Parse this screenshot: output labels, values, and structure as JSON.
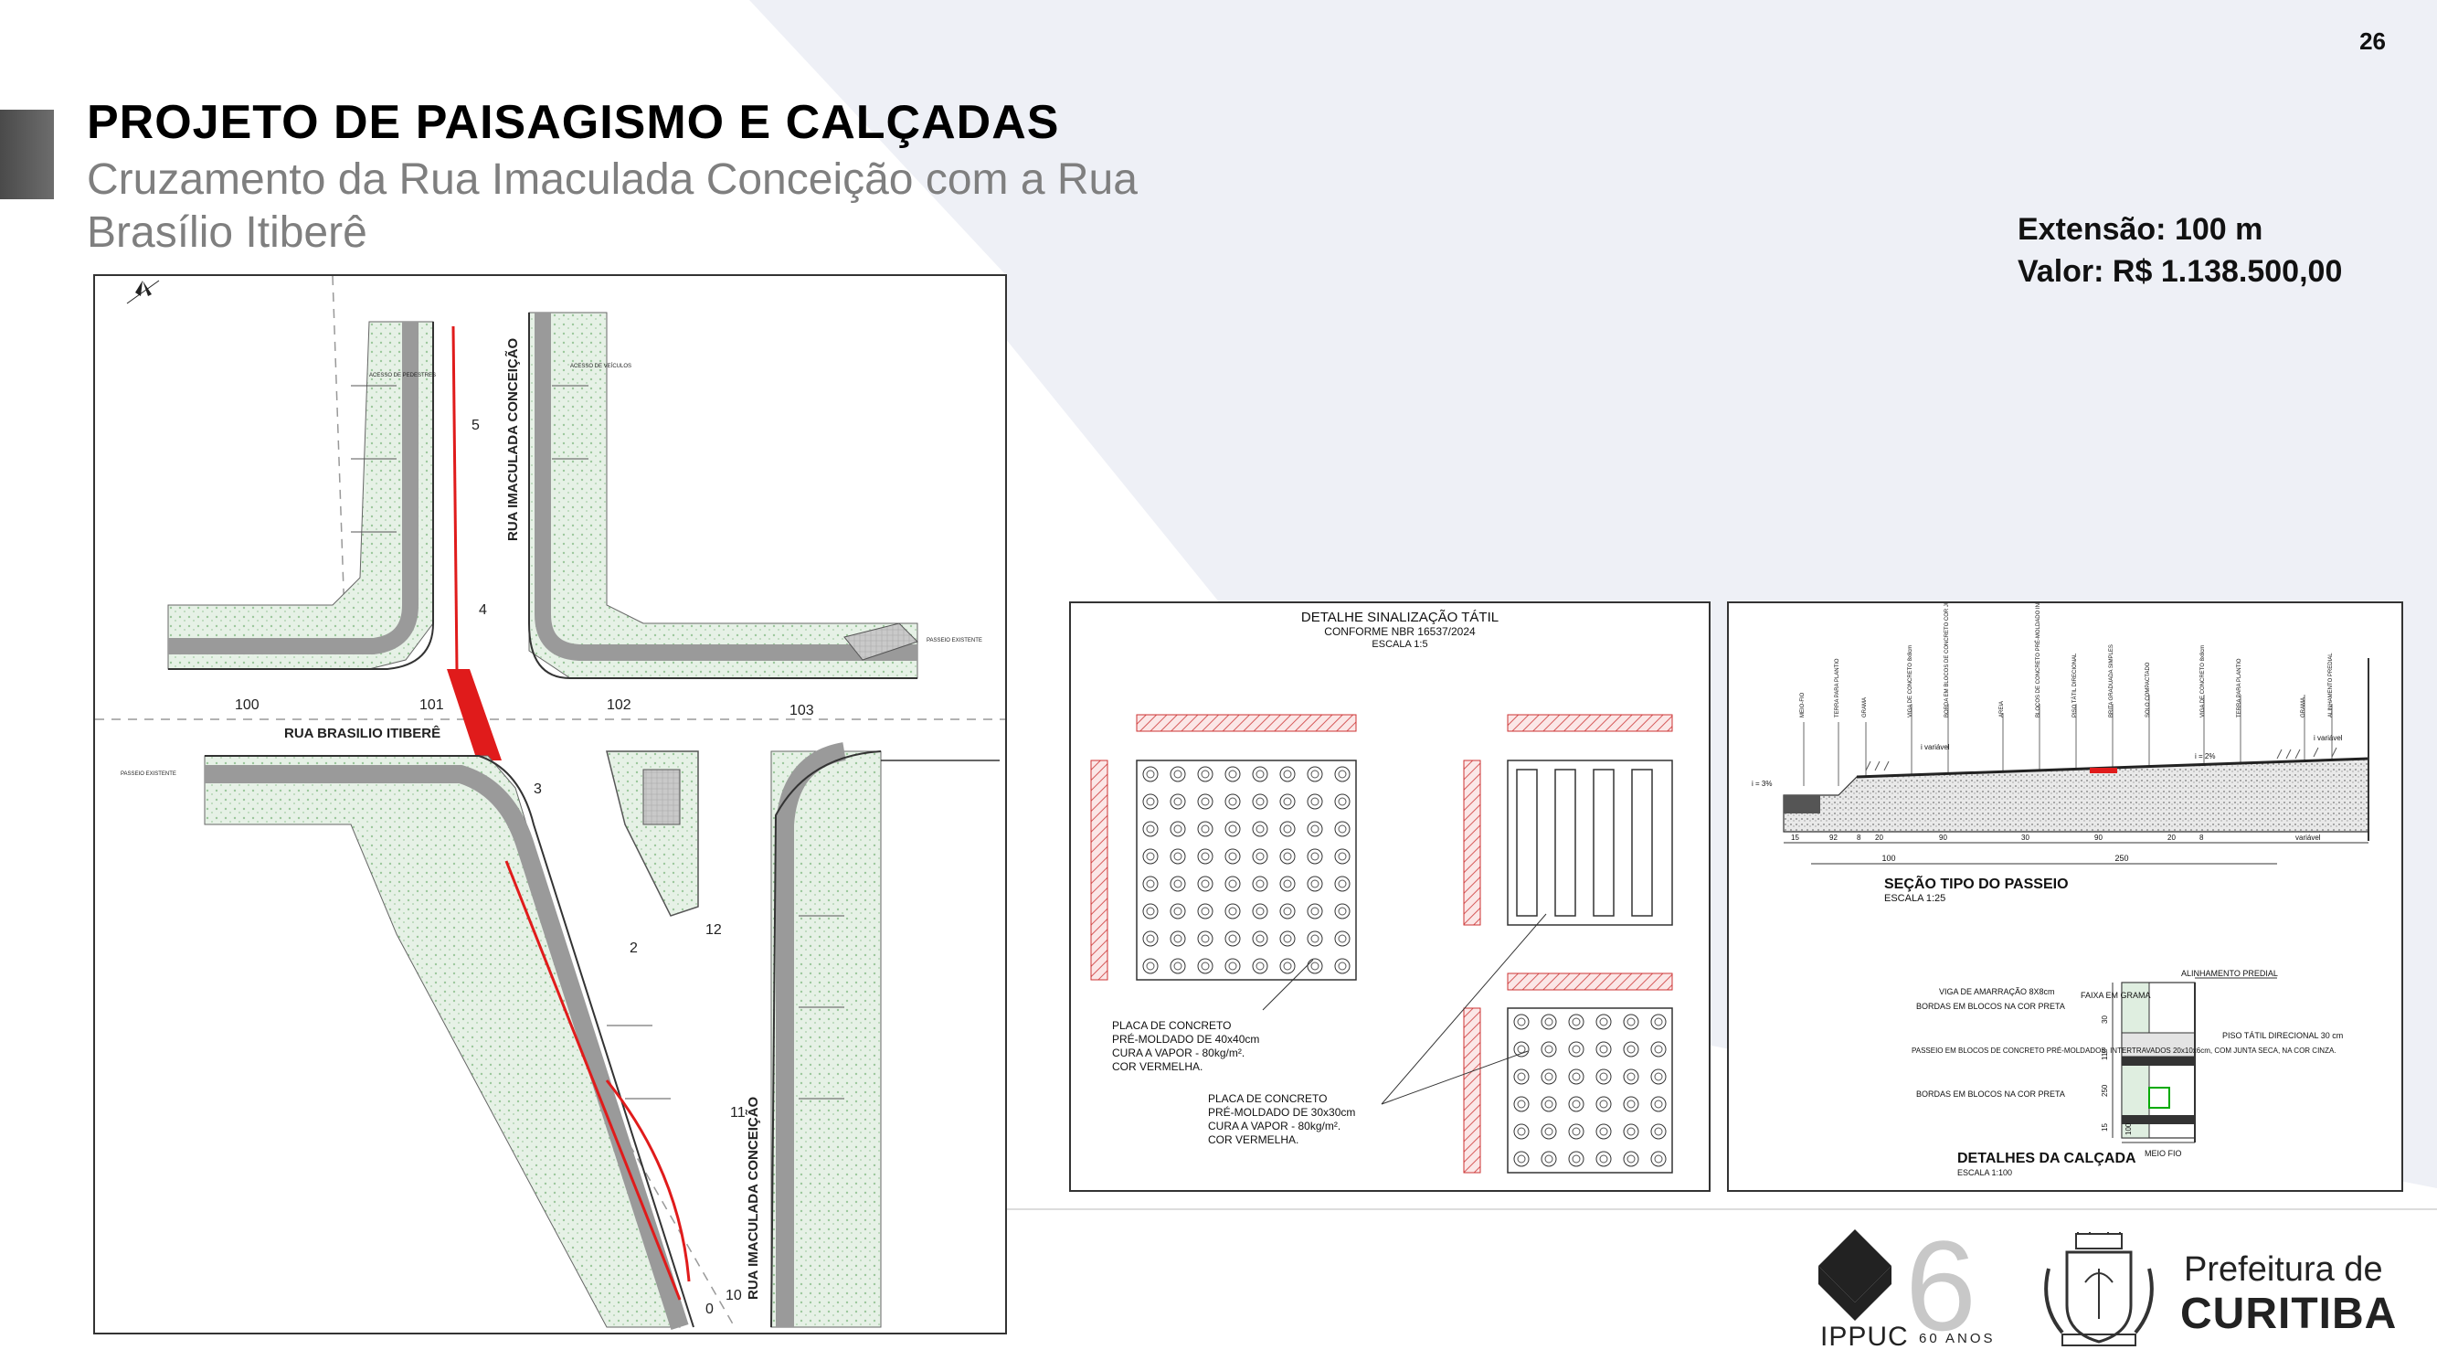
{
  "page": {
    "number": "26",
    "title": "PROJETO DE PAISAGISMO E CALÇADAS",
    "subtitle": "Cruzamento da Rua Imaculada Conceição com a Rua Brasílio Itiberê"
  },
  "info": {
    "extensao": "Extensão: 100 m",
    "valor": "Valor: R$ 1.138.500,00"
  },
  "plan": {
    "street_vertical_top": "RUA IMACULADA CONCEIÇÃO",
    "street_horizontal": "RUA BRASILIO ITIBERÊ",
    "street_vertical_bottom": "RUA IMACULADA CONCEIÇÃO",
    "marks": [
      "100",
      "101",
      "102",
      "103"
    ],
    "road_numbers": [
      "5",
      "4",
      "3",
      "2",
      "12",
      "11",
      "10"
    ],
    "zero_mark": "0",
    "label_passeio_existente": "PASSEIO EXISTENTE",
    "label_acesso_pedestres": "ACESSO DE PEDESTRES",
    "label_acesso_veiculos": "ACESSO DE VEÍCULOS"
  },
  "tactile": {
    "title": "DETALHE SINALIZAÇÃO TÁTIL",
    "norm": "CONFORME NBR 16537/2024",
    "scale": "ESCALA 1:5",
    "note1": [
      "PLACA DE CONCRETO",
      "PRÉ-MOLDADO DE 40x40cm",
      "CURA A VAPOR - 80kg/m².",
      "COR VERMELHA."
    ],
    "note2": [
      "PLACA DE CONCRETO",
      "PRÉ-MOLDADO DE 30x30cm",
      "CURA A VAPOR - 80kg/m².",
      "COR VERMELHA."
    ]
  },
  "section": {
    "title": "SEÇÃO TIPO DO PASSEIO",
    "scale": "ESCALA 1:25",
    "dims": [
      "15",
      "92",
      "8",
      "20",
      "90",
      "30",
      "90",
      "20",
      "8",
      "variável"
    ],
    "totals": [
      "100",
      "250"
    ],
    "labels_top": [
      "MEIO-FIO",
      "TERRA PARA PLANTIO",
      "GRAMA",
      "VIGA DE CONCRETO 8x8cm",
      "BORDA EM BLOCOS DE CONCRETO COR JUNTA SECA",
      "AREIA",
      "BLOCOS DE CONCRETO PRÉ-MOLDADO INTERTRAVADO",
      "PISO TÁTIL DIRECIONAL",
      "BRITA GRADUADA SIMPLES",
      "SOLO COMPACTADO",
      "VIGA DE CONCRETO 8x8cm",
      "TERRA PARA PLANTIO",
      "GRAMA",
      "ALINHAMENTO PREDIAL"
    ],
    "i_labels": [
      "i = 3%",
      "i variável",
      "i = 2%",
      "i variável"
    ],
    "detail_title": "DETALHES DA CALÇADA",
    "detail_scale": "ESCALA 1:100",
    "detail_labels": [
      "ALINHAMENTO PREDIAL",
      "VIGA DE AMARRAÇÃO 8X8cm",
      "BORDAS EM BLOCOS NA COR PRETA",
      "FAIXA EM GRAMA",
      "PISO TÁTIL DIRECIONAL 30 cm",
      "PASSEIO EM BLOCOS DE CONCRETO PRÉ-MOLDADOS, INTERTRAVADOS 20x10x6cm, COM JUNTA SECA, NA COR CINZA.",
      "BORDAS EM BLOCOS NA COR PRETA",
      "MEIO FIO"
    ],
    "detail_dims": [
      "30",
      "110",
      "250",
      "100",
      "15"
    ]
  },
  "footer": {
    "ippuc": "IPPUC",
    "sixty": "60 ANOS",
    "sixty_digit": "6",
    "pref_line1": "Prefeitura de",
    "pref_line2": "CURITIBA"
  },
  "colors": {
    "accent_gray": "#5a5a5a",
    "background_shape": "#eef0f6",
    "red_curb": "#e01b1b",
    "drawing_line": "#333333",
    "grass": "#dfeee0"
  }
}
